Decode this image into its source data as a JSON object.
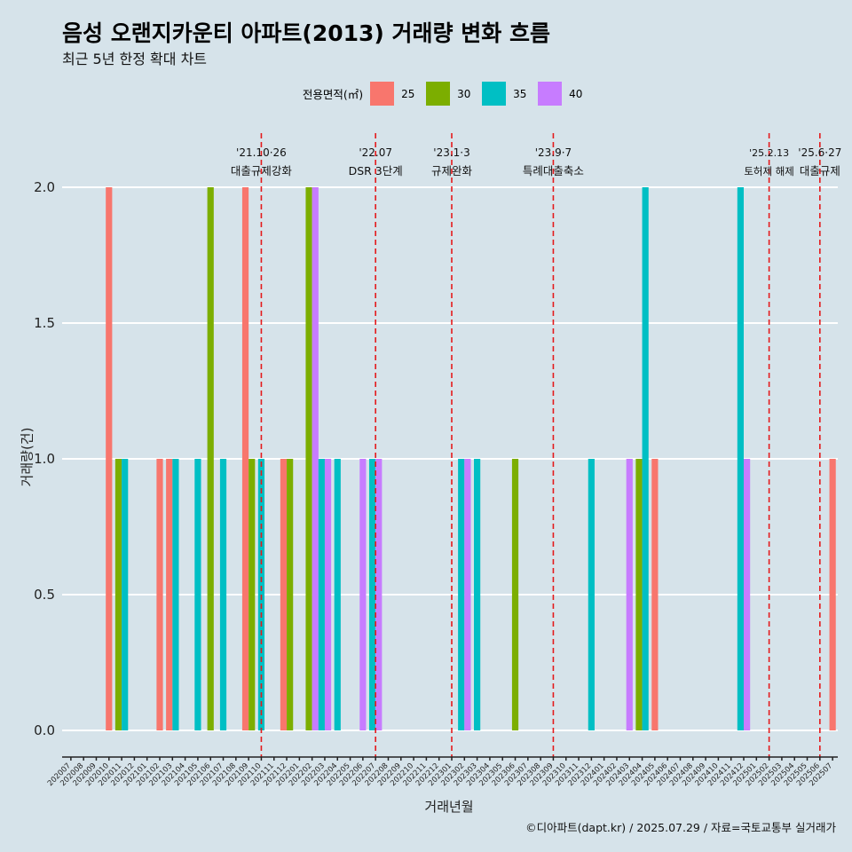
{
  "title": "음성 오랜지카운티 아파트(2013) 거래량 변화 흐름",
  "subtitle": "최근 5년 한정 확대 차트",
  "caption": "©디아파트(dapt.kr) / 2025.07.29 / 자료=국토교통부 실거래가",
  "colors": {
    "background": "#d6e3ea",
    "grid": "#ffffff",
    "event_line": "#e41a1c",
    "series": {
      "25": "#f8766d",
      "30": "#7cae00",
      "35": "#00bfc4",
      "40": "#c77cff"
    }
  },
  "legend": {
    "title": "전용면적(㎡)",
    "items": [
      {
        "key": "25",
        "label": "25"
      },
      {
        "key": "30",
        "label": "30"
      },
      {
        "key": "35",
        "label": "35"
      },
      {
        "key": "40",
        "label": "40"
      }
    ]
  },
  "chart_data": {
    "type": "bar",
    "title": "음성 오랜지카운티 아파트(2013) 거래량 변화 흐름",
    "subtitle": "최근 5년 한정 확대 차트",
    "xlabel": "거래년월",
    "ylabel": "거래량(건)",
    "ylim": [
      0,
      2
    ],
    "yticks": [
      "0.0",
      "0.5",
      "1.0",
      "1.5",
      "2.0"
    ],
    "grid": true,
    "legend_position": "top",
    "categories": [
      "202007",
      "202008",
      "202009",
      "202010",
      "202011",
      "202012",
      "202101",
      "202102",
      "202103",
      "202104",
      "202105",
      "202106",
      "202107",
      "202108",
      "202109",
      "202110",
      "202111",
      "202112",
      "202201",
      "202202",
      "202203",
      "202204",
      "202205",
      "202206",
      "202207",
      "202208",
      "202209",
      "202210",
      "202211",
      "202212",
      "202301",
      "202302",
      "202303",
      "202304",
      "202305",
      "202306",
      "202307",
      "202308",
      "202309",
      "202310",
      "202311",
      "202312",
      "202401",
      "202402",
      "202403",
      "202404",
      "202405",
      "202406",
      "202407",
      "202408",
      "202409",
      "202410",
      "202411",
      "202412",
      "202501",
      "202502",
      "202503",
      "202504",
      "202505",
      "202506",
      "202507"
    ],
    "bars": [
      {
        "month": "202010",
        "area": "25",
        "value": 2
      },
      {
        "month": "202011",
        "area": "35",
        "value": 1
      },
      {
        "month": "202011",
        "area": "30",
        "value": 1
      },
      {
        "month": "202102",
        "area": "25",
        "value": 1
      },
      {
        "month": "202103",
        "area": "25",
        "value": 1
      },
      {
        "month": "202103",
        "area": "35",
        "value": 1
      },
      {
        "month": "202105",
        "area": "35",
        "value": 1
      },
      {
        "month": "202106",
        "area": "30",
        "value": 2
      },
      {
        "month": "202107",
        "area": "35",
        "value": 1
      },
      {
        "month": "202109",
        "area": "25",
        "value": 2
      },
      {
        "month": "202109",
        "area": "30",
        "value": 1
      },
      {
        "month": "202110",
        "area": "35",
        "value": 1
      },
      {
        "month": "202112",
        "area": "25",
        "value": 1
      },
      {
        "month": "202112",
        "area": "30",
        "value": 1
      },
      {
        "month": "202202",
        "area": "30",
        "value": 2
      },
      {
        "month": "202202",
        "area": "40",
        "value": 2
      },
      {
        "month": "202203",
        "area": "35",
        "value": 1
      },
      {
        "month": "202203",
        "area": "40",
        "value": 1
      },
      {
        "month": "202204",
        "area": "35",
        "value": 1
      },
      {
        "month": "202206",
        "area": "40",
        "value": 1
      },
      {
        "month": "202207",
        "area": "35",
        "value": 1
      },
      {
        "month": "202207",
        "area": "40",
        "value": 1
      },
      {
        "month": "202302",
        "area": "35",
        "value": 1
      },
      {
        "month": "202302",
        "area": "40",
        "value": 1
      },
      {
        "month": "202303",
        "area": "35",
        "value": 1
      },
      {
        "month": "202306",
        "area": "30",
        "value": 1
      },
      {
        "month": "202312",
        "area": "35",
        "value": 1
      },
      {
        "month": "202403",
        "area": "40",
        "value": 1
      },
      {
        "month": "202404",
        "area": "30",
        "value": 1
      },
      {
        "month": "202404",
        "area": "35",
        "value": 2
      },
      {
        "month": "202405",
        "area": "25",
        "value": 1
      },
      {
        "month": "202412",
        "area": "35",
        "value": 2
      },
      {
        "month": "202412",
        "area": "40",
        "value": 1
      },
      {
        "month": "202507",
        "area": "25",
        "value": 1
      }
    ],
    "events": [
      {
        "month": "202110",
        "date": "'21.10·26",
        "label": "대출규제강화"
      },
      {
        "month": "202207",
        "date": "'22.07",
        "label": "DSR 3단계"
      },
      {
        "month": "202301",
        "date": "'23.1·3",
        "label": "규제완화"
      },
      {
        "month": "202309",
        "date": "'23.9·7",
        "label": "특례대출축소"
      },
      {
        "month": "202502",
        "date": "'25.2.13",
        "label": "토허제 해제"
      },
      {
        "month": "202506",
        "date": "'25.6·27",
        "label": "대출규제"
      }
    ]
  }
}
